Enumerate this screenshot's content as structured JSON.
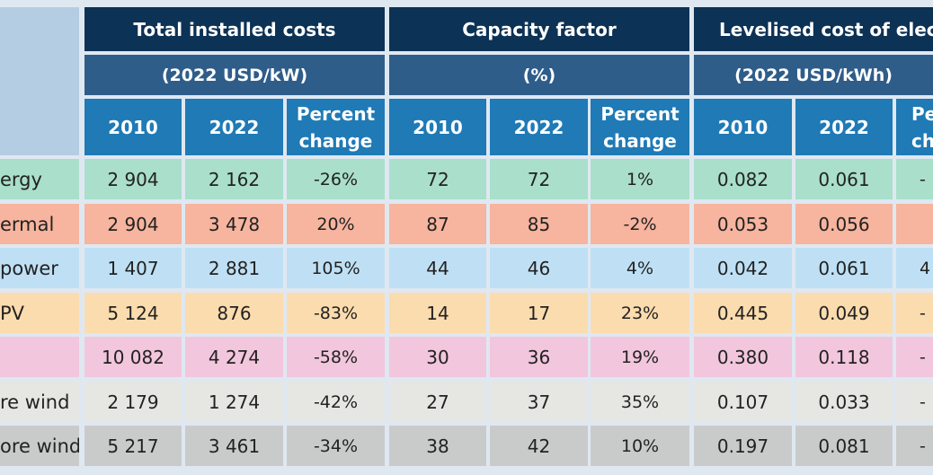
{
  "header": {
    "groups": [
      {
        "title": "Total installed costs",
        "unit": "(2022 USD/kW)"
      },
      {
        "title": "Capacity factor",
        "unit": "(%)"
      },
      {
        "title": "Levelised cost of electri",
        "unit": "(2022 USD/kWh)"
      }
    ],
    "subcols": {
      "y2010": "2010",
      "y2022": "2022",
      "pct_line1": "Percent",
      "pct_line2": "change",
      "pct_clip_line1": "Pe",
      "pct_clip_line2": "ch"
    }
  },
  "rows": [
    {
      "label": "ergy",
      "color": "#a9dfcb",
      "values": [
        "2 904",
        "2 162",
        "-26%",
        "72",
        "72",
        "1%",
        "0.082",
        "0.061",
        "-"
      ]
    },
    {
      "label": "ermal",
      "color": "#f7b49e",
      "values": [
        "2 904",
        "3 478",
        "20%",
        "87",
        "85",
        "-2%",
        "0.053",
        "0.056",
        ""
      ]
    },
    {
      "label": "power",
      "color": "#bfe0f4",
      "values": [
        "1 407",
        "2 881",
        "105%",
        "44",
        "46",
        "4%",
        "0.042",
        "0.061",
        "4"
      ]
    },
    {
      "label": "PV",
      "color": "#fbdcae",
      "values": [
        "5 124",
        "876",
        "-83%",
        "14",
        "17",
        "23%",
        "0.445",
        "0.049",
        "-"
      ]
    },
    {
      "label": "",
      "color": "#f2c6dd",
      "values": [
        "10 082",
        "4 274",
        "-58%",
        "30",
        "36",
        "19%",
        "0.380",
        "0.118",
        "-"
      ]
    },
    {
      "label": "re wind",
      "color": "#e6e6e3",
      "values": [
        "2 179",
        "1 274",
        "-42%",
        "27",
        "37",
        "35%",
        "0.107",
        "0.033",
        "-"
      ]
    },
    {
      "label": "ore wind",
      "color": "#c9cbcb",
      "values": [
        "5 217",
        "3 461",
        "-34%",
        "38",
        "42",
        "10%",
        "0.197",
        "0.081",
        "-"
      ]
    }
  ]
}
